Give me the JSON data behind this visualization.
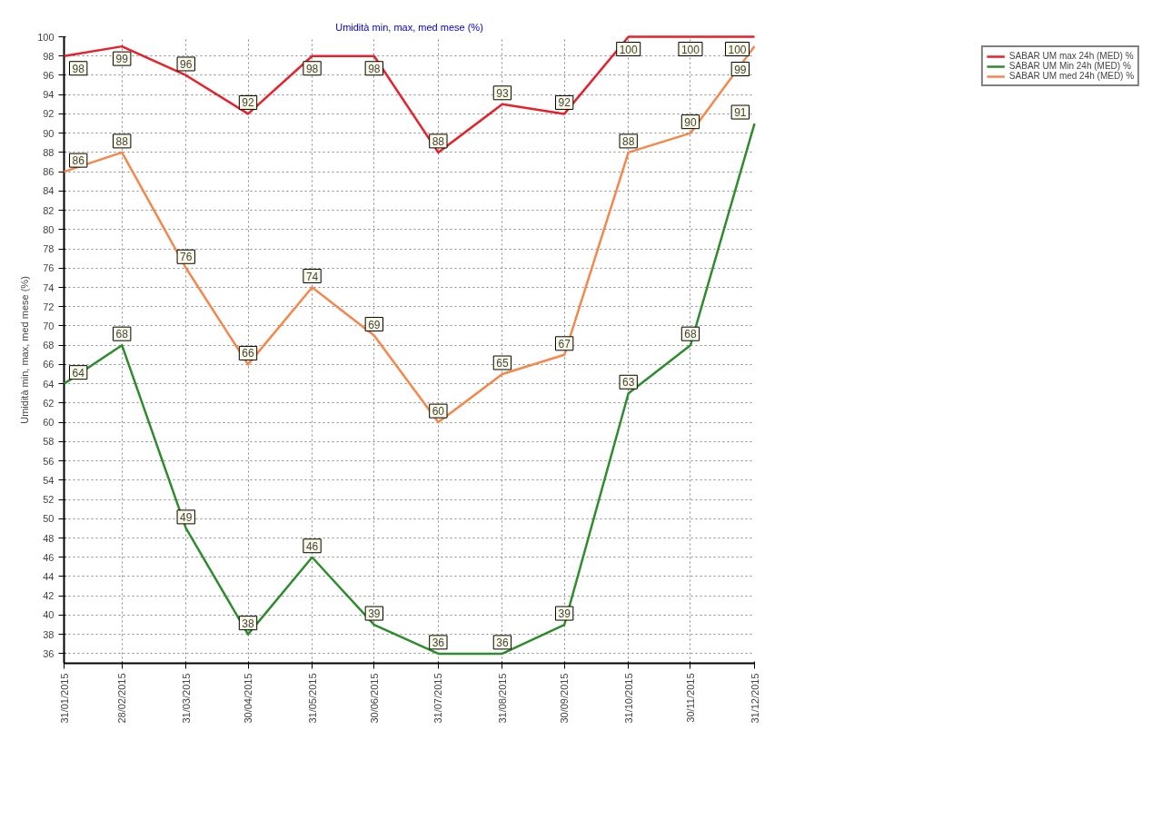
{
  "chart_data": {
    "type": "line",
    "title": "Umidità min, max, med mese (%)",
    "ylabel": "Umidità min, max, med mese (%)",
    "x": [
      "2015-01-31",
      "2015-02-28",
      "2015-03-31",
      "2015-04-30",
      "2015-05-31",
      "2015-06-30",
      "2015-07-31",
      "2015-08-31",
      "2015-09-30",
      "2015-10-31",
      "2015-11-30",
      "2015-12-31"
    ],
    "series": [
      {
        "name": "SABAR UM max 24h (MED) %",
        "color": "#e8202a",
        "values": [
          98,
          99,
          96,
          92,
          98,
          98,
          88,
          93,
          92,
          100,
          100,
          100
        ]
      },
      {
        "name": "SABAR UM Min 24h (MED) %",
        "color": "#2e8b2e",
        "values": [
          64,
          68,
          49,
          38,
          46,
          39,
          36,
          36,
          39,
          63,
          68,
          91
        ]
      },
      {
        "name": "SABAR UM med 24h (MED) %",
        "color": "#f4874b",
        "values": [
          86,
          88,
          76,
          66,
          74,
          69,
          60,
          65,
          67,
          88,
          90,
          99
        ]
      }
    ],
    "xlim": [
      "2015-01-31",
      "2015-12-31"
    ],
    "xticks": [
      {
        "value": "2015-01-31",
        "label": "31/01/2015"
      },
      {
        "value": "2015-02-28",
        "label": "28/02/2015"
      },
      {
        "value": "2015-03-31",
        "label": "31/03/2015"
      },
      {
        "value": "2015-04-30",
        "label": "30/04/2015"
      },
      {
        "value": "2015-05-31",
        "label": "31/05/2015"
      },
      {
        "value": "2015-06-30",
        "label": "30/06/2015"
      },
      {
        "value": "2015-07-31",
        "label": "31/07/2015"
      },
      {
        "value": "2015-08-31",
        "label": "31/08/2015"
      },
      {
        "value": "2015-09-30",
        "label": "30/09/2015"
      },
      {
        "value": "2015-10-31",
        "label": "31/10/2015"
      },
      {
        "value": "2015-11-30",
        "label": "30/11/2015"
      },
      {
        "value": "2015-12-31",
        "label": "31/12/2015"
      }
    ],
    "ylim": [
      35,
      100
    ],
    "yticks": [
      36,
      38,
      40,
      42,
      44,
      46,
      48,
      50,
      52,
      54,
      56,
      58,
      60,
      62,
      64,
      66,
      68,
      70,
      72,
      74,
      76,
      78,
      80,
      82,
      84,
      86,
      88,
      90,
      92,
      94,
      96,
      98,
      100
    ],
    "grid": true,
    "legend": "top right",
    "data_labels": true,
    "marker": "none",
    "line_style": "solid"
  }
}
